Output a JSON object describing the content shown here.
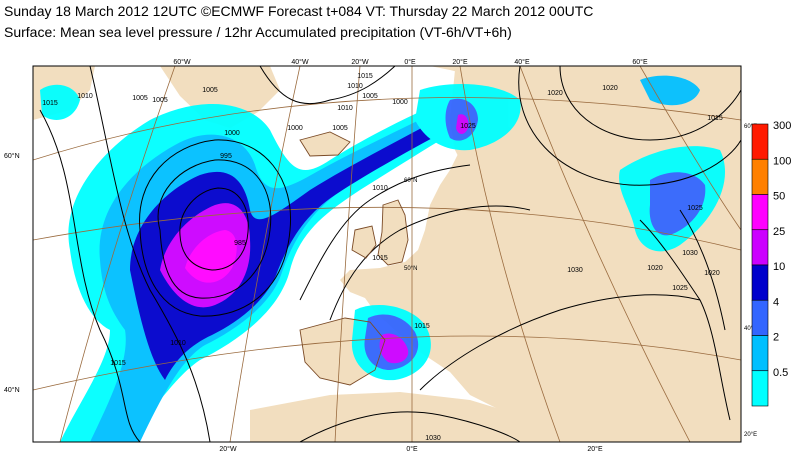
{
  "header": {
    "line1": "Sunday 18 March 2012 12UTC ©ECMWF Forecast t+084 VT: Thursday 22 March 2012 00UTC",
    "line2": "Surface: Mean sea level pressure / 12hr Accumulated precipitation (VT-6h/VT+6h)"
  },
  "legend": {
    "levels": [
      {
        "label": "300",
        "color": "#ff1a00"
      },
      {
        "label": "100",
        "color": "#ff8000"
      },
      {
        "label": "50",
        "color": "#ff00ff"
      },
      {
        "label": "25",
        "color": "#cc00ff"
      },
      {
        "label": "10",
        "color": "#0000cc"
      },
      {
        "label": "4",
        "color": "#3366ff"
      },
      {
        "label": "2",
        "color": "#00bfff"
      },
      {
        "label": "0.5",
        "color": "#00ffff"
      }
    ]
  },
  "graticule": {
    "top_labels": [
      "60°W",
      "40°W",
      "20°W",
      "0°E",
      "20°E",
      "40°E",
      "60°E"
    ],
    "bottom_labels": [
      "20°W",
      "0°E",
      "20°E"
    ],
    "left_labels": [
      "60°N",
      "40°N"
    ],
    "interior_labels": [
      "60°N",
      "50°N"
    ],
    "right_labels": [
      "60°E",
      "40°E",
      "20°E"
    ]
  },
  "isobars": {
    "labels": [
      "1015",
      "1010",
      "1005",
      "1005",
      "1000",
      "1000",
      "995",
      "985",
      "1010",
      "1015",
      "1015",
      "1020",
      "1025",
      "1030",
      "1030",
      "1025",
      "1020",
      "1015",
      "1020",
      "1025",
      "1020",
      "1010",
      "1005",
      "1010",
      "1015",
      "1010",
      "1015",
      "1030",
      "1015",
      "1005",
      "1000",
      "1005"
    ]
  },
  "colors": {
    "land": "#f2debf",
    "sea": "#ffffff",
    "isobar": "#000000",
    "graticule": "#9a6b3f",
    "coast": "#7b4b27"
  }
}
